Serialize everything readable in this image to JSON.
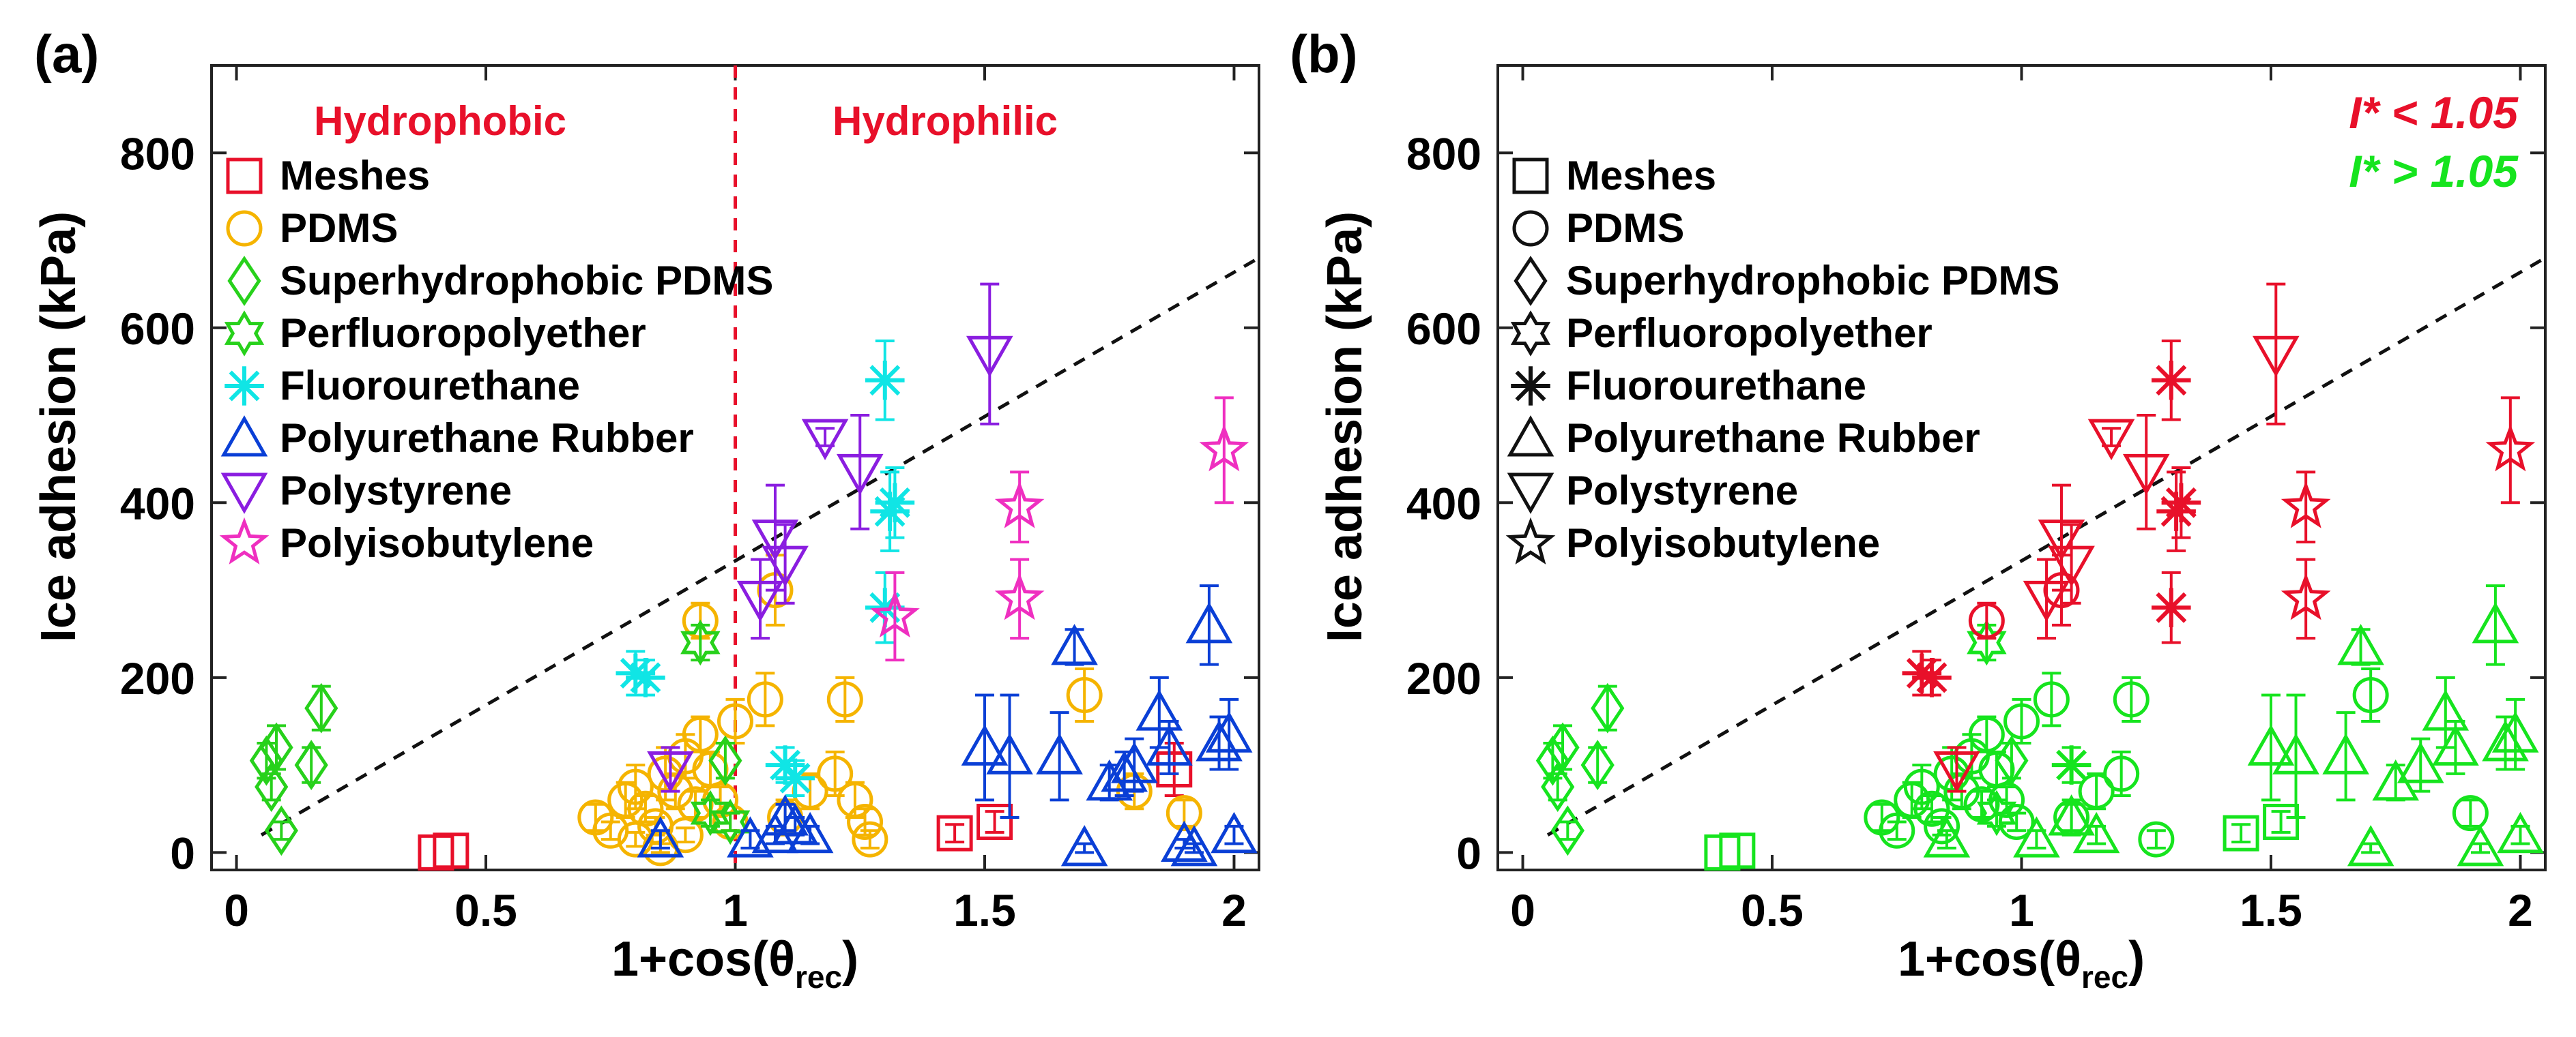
{
  "colors": {
    "meshes": "#e8102a",
    "pdms": "#f5b400",
    "superhydrophobic_pdms": "#27d11b",
    "perfluoropolyether": "#27d11b",
    "fluorourethane": "#10e5e5",
    "polyurethane_rubber": "#0a3fd6",
    "polystyrene": "#8a1de0",
    "polyisobutylene": "#ef2fc0",
    "low_i": "#e8102a",
    "high_i": "#16e41e",
    "black": "#111111"
  },
  "chart_data": [
    {
      "type": "scatter",
      "panel_label": "(a)",
      "xlabel_main": "1+cos(θ",
      "xlabel_sub": "rec",
      "xlabel_close": ")",
      "ylabel": "Ice adhesion (kPa)",
      "xlim": [
        -0.05,
        2.05
      ],
      "ylim": [
        -20,
        900
      ],
      "x_ticks": [
        0,
        0.5,
        1,
        1.5,
        2
      ],
      "x_tick_labels": [
        "0",
        "0.5",
        "1",
        "1.5",
        "2"
      ],
      "y_ticks": [
        0,
        200,
        400,
        600,
        800
      ],
      "y_tick_labels": [
        "0",
        "200",
        "400",
        "600",
        "800"
      ],
      "region_labels": [
        "Hydrophobic",
        "Hydrophilic"
      ],
      "divider_x": 1,
      "trend_line": {
        "x": [
          0.05,
          2.05
        ],
        "y": [
          20,
          680
        ]
      },
      "legend": [
        "Meshes",
        "PDMS",
        "Superhydrophobic PDMS",
        "Perfluoropolyether",
        "Fluorourethane",
        "Polyurethane Rubber",
        "Polystyrene",
        "Polyisobutylene"
      ],
      "series": [
        {
          "name": "Meshes",
          "marker": "square",
          "points": [
            [
              0.4,
              0,
              0
            ],
            [
              0.43,
              2,
              0
            ],
            [
              1.44,
              22,
              10
            ],
            [
              1.52,
              35,
              12
            ],
            [
              1.88,
              95,
              30
            ]
          ]
        },
        {
          "name": "PDMS",
          "marker": "circle",
          "points": [
            [
              0.72,
              40,
              15
            ],
            [
              0.75,
              25,
              10
            ],
            [
              0.78,
              60,
              20
            ],
            [
              0.8,
              75,
              25
            ],
            [
              0.82,
              50,
              15
            ],
            [
              0.84,
              30,
              10
            ],
            [
              0.86,
              90,
              30
            ],
            [
              0.88,
              70,
              20
            ],
            [
              0.9,
              110,
              25
            ],
            [
              0.92,
              55,
              15
            ],
            [
              0.93,
              135,
              20
            ],
            [
              0.95,
              95,
              20
            ],
            [
              0.97,
              60,
              15
            ],
            [
              0.99,
              35,
              10
            ],
            [
              0.8,
              15,
              8
            ],
            [
              0.85,
              5,
              5
            ],
            [
              0.9,
              20,
              8
            ],
            [
              1.0,
              150,
              25
            ],
            [
              1.06,
              175,
              30
            ],
            [
              1.08,
              300,
              40
            ],
            [
              1.1,
              40,
              20
            ],
            [
              1.15,
              70,
              20
            ],
            [
              1.2,
              90,
              25
            ],
            [
              1.22,
              175,
              25
            ],
            [
              1.24,
              60,
              20
            ],
            [
              1.26,
              35,
              15
            ],
            [
              1.27,
              15,
              10
            ],
            [
              0.93,
              265,
              20
            ],
            [
              1.7,
              180,
              30
            ],
            [
              1.8,
              70,
              20
            ],
            [
              1.9,
              45,
              15
            ]
          ]
        },
        {
          "name": "Superhydrophobic PDMS",
          "marker": "diamond",
          "points": [
            [
              0.06,
              105,
              20
            ],
            [
              0.07,
              75,
              15
            ],
            [
              0.08,
              120,
              25
            ],
            [
              0.09,
              25,
              10
            ],
            [
              0.15,
              100,
              20
            ],
            [
              0.17,
              165,
              25
            ],
            [
              0.98,
              105,
              20
            ]
          ]
        },
        {
          "name": "Perfluoropolyether",
          "marker": "star6",
          "points": [
            [
              0.93,
              240,
              20
            ],
            [
              0.95,
              45,
              15
            ],
            [
              0.99,
              35,
              10
            ]
          ]
        },
        {
          "name": "Fluorourethane",
          "marker": "asterisk",
          "points": [
            [
              0.8,
              205,
              25
            ],
            [
              0.82,
              200,
              20
            ],
            [
              1.1,
              100,
              20
            ],
            [
              1.12,
              85,
              20
            ],
            [
              1.3,
              540,
              45
            ],
            [
              1.31,
              390,
              45
            ],
            [
              1.3,
              280,
              40
            ],
            [
              1.32,
              400,
              40
            ]
          ]
        },
        {
          "name": "Polyurethane Rubber",
          "marker": "triangle-up",
          "points": [
            [
              0.85,
              15,
              10
            ],
            [
              1.03,
              15,
              10
            ],
            [
              1.08,
              20,
              10
            ],
            [
              1.1,
              40,
              15
            ],
            [
              1.12,
              30,
              10
            ],
            [
              1.15,
              20,
              10
            ],
            [
              1.5,
              120,
              60
            ],
            [
              1.55,
              110,
              70
            ],
            [
              1.65,
              110,
              50
            ],
            [
              1.68,
              235,
              20
            ],
            [
              1.7,
              5,
              5
            ],
            [
              1.75,
              80,
              20
            ],
            [
              1.78,
              90,
              25
            ],
            [
              1.8,
              100,
              30
            ],
            [
              1.85,
              160,
              40
            ],
            [
              1.87,
              120,
              30
            ],
            [
              1.9,
              10,
              5
            ],
            [
              1.92,
              5,
              5
            ],
            [
              1.95,
              260,
              45
            ],
            [
              1.97,
              125,
              30
            ],
            [
              1.99,
              135,
              40
            ],
            [
              2.0,
              20,
              10
            ]
          ]
        },
        {
          "name": "Polystyrene",
          "marker": "triangle-down",
          "points": [
            [
              0.87,
              95,
              25
            ],
            [
              1.05,
              290,
              45
            ],
            [
              1.08,
              360,
              60
            ],
            [
              1.1,
              330,
              45
            ],
            [
              1.18,
              475,
              10
            ],
            [
              1.25,
              435,
              65
            ],
            [
              1.51,
              570,
              80
            ]
          ]
        },
        {
          "name": "Polyisobutylene",
          "marker": "star5",
          "points": [
            [
              1.32,
              270,
              50
            ],
            [
              1.57,
              395,
              40
            ],
            [
              1.57,
              290,
              45
            ],
            [
              1.98,
              460,
              60
            ]
          ]
        }
      ]
    },
    {
      "type": "scatter",
      "panel_label": "(b)",
      "xlabel_main": "1+cos(θ",
      "xlabel_sub": "rec",
      "xlabel_close": ")",
      "ylabel": "Ice adhesion (kPa)",
      "xlim": [
        -0.05,
        2.05
      ],
      "ylim": [
        -20,
        900
      ],
      "x_ticks": [
        0,
        0.5,
        1,
        1.5,
        2
      ],
      "x_tick_labels": [
        "0",
        "0.5",
        "1",
        "1.5",
        "2"
      ],
      "y_ticks": [
        0,
        200,
        400,
        600,
        800
      ],
      "y_tick_labels": [
        "0",
        "200",
        "400",
        "600",
        "800"
      ],
      "threshold_labels": [
        "I* < 1.05",
        "I* > 1.05"
      ],
      "trend_line": {
        "x": [
          0.05,
          2.05
        ],
        "y": [
          20,
          680
        ]
      },
      "legend": [
        "Meshes",
        "PDMS",
        "Superhydrophobic PDMS",
        "Perfluoropolyether",
        "Fluorourethane",
        "Polyurethane Rubber",
        "Polystyrene",
        "Polyisobutylene"
      ],
      "series": [
        {
          "name": "I* < 1.05",
          "points": [
            [
              "triangle-down",
              0.87,
              95,
              25
            ],
            [
              "circle",
              0.93,
              265,
              20
            ],
            [
              "asterisk",
              0.8,
              205,
              25
            ],
            [
              "asterisk",
              0.82,
              200,
              20
            ],
            [
              "triangle-down",
              1.05,
              290,
              45
            ],
            [
              "triangle-down",
              1.08,
              360,
              60
            ],
            [
              "triangle-down",
              1.1,
              330,
              45
            ],
            [
              "circle",
              1.08,
              300,
              40
            ],
            [
              "triangle-down",
              1.18,
              475,
              10
            ],
            [
              "triangle-down",
              1.25,
              435,
              65
            ],
            [
              "asterisk",
              1.3,
              540,
              45
            ],
            [
              "asterisk",
              1.31,
              390,
              45
            ],
            [
              "asterisk",
              1.3,
              280,
              40
            ],
            [
              "asterisk",
              1.32,
              400,
              40
            ],
            [
              "triangle-down",
              1.51,
              570,
              80
            ],
            [
              "star5",
              1.57,
              395,
              40
            ],
            [
              "star5",
              1.57,
              290,
              45
            ],
            [
              "star5",
              1.98,
              460,
              60
            ]
          ]
        },
        {
          "name": "I* > 1.05",
          "points": [
            [
              "square",
              0.4,
              0,
              0
            ],
            [
              "square",
              0.43,
              2,
              0
            ],
            [
              "square",
              1.44,
              22,
              10
            ],
            [
              "square",
              1.52,
              35,
              12
            ],
            [
              "diamond",
              0.06,
              105,
              20
            ],
            [
              "diamond",
              0.07,
              75,
              15
            ],
            [
              "diamond",
              0.08,
              120,
              25
            ],
            [
              "diamond",
              0.09,
              25,
              10
            ],
            [
              "diamond",
              0.15,
              100,
              20
            ],
            [
              "diamond",
              0.17,
              165,
              25
            ],
            [
              "star6",
              0.93,
              240,
              20
            ],
            [
              "circle",
              0.72,
              40,
              15
            ],
            [
              "circle",
              0.75,
              25,
              10
            ],
            [
              "circle",
              0.78,
              60,
              20
            ],
            [
              "circle",
              0.8,
              75,
              25
            ],
            [
              "circle",
              0.82,
              50,
              15
            ],
            [
              "circle",
              0.84,
              30,
              10
            ],
            [
              "circle",
              0.86,
              90,
              30
            ],
            [
              "circle",
              0.88,
              70,
              20
            ],
            [
              "circle",
              0.9,
              110,
              25
            ],
            [
              "circle",
              0.92,
              55,
              15
            ],
            [
              "circle",
              0.93,
              135,
              20
            ],
            [
              "circle",
              0.95,
              95,
              20
            ],
            [
              "circle",
              0.97,
              60,
              15
            ],
            [
              "circle",
              0.99,
              35,
              10
            ],
            [
              "circle",
              1.0,
              150,
              25
            ],
            [
              "circle",
              1.06,
              175,
              30
            ],
            [
              "circle",
              1.1,
              40,
              20
            ],
            [
              "circle",
              1.15,
              70,
              20
            ],
            [
              "circle",
              1.2,
              90,
              25
            ],
            [
              "circle",
              1.22,
              175,
              25
            ],
            [
              "circle",
              1.27,
              15,
              10
            ],
            [
              "circle",
              1.7,
              180,
              30
            ],
            [
              "circle",
              1.9,
              45,
              15
            ],
            [
              "asterisk",
              1.1,
              100,
              20
            ],
            [
              "triangle-up",
              0.85,
              15,
              10
            ],
            [
              "triangle-up",
              1.03,
              15,
              10
            ],
            [
              "triangle-up",
              1.1,
              40,
              15
            ],
            [
              "triangle-up",
              1.15,
              20,
              10
            ],
            [
              "triangle-up",
              1.5,
              120,
              60
            ],
            [
              "triangle-up",
              1.55,
              110,
              70
            ],
            [
              "triangle-up",
              1.65,
              110,
              50
            ],
            [
              "triangle-up",
              1.68,
              235,
              20
            ],
            [
              "triangle-up",
              1.7,
              5,
              5
            ],
            [
              "triangle-up",
              1.75,
              80,
              20
            ],
            [
              "triangle-up",
              1.8,
              100,
              30
            ],
            [
              "triangle-up",
              1.85,
              160,
              40
            ],
            [
              "triangle-up",
              1.87,
              120,
              30
            ],
            [
              "triangle-up",
              1.92,
              5,
              5
            ],
            [
              "triangle-up",
              1.95,
              260,
              45
            ],
            [
              "triangle-up",
              1.97,
              125,
              30
            ],
            [
              "triangle-up",
              1.99,
              135,
              40
            ],
            [
              "triangle-up",
              2.0,
              20,
              10
            ],
            [
              "diamond",
              0.98,
              105,
              20
            ],
            [
              "star6",
              0.95,
              45,
              15
            ]
          ]
        }
      ]
    }
  ]
}
